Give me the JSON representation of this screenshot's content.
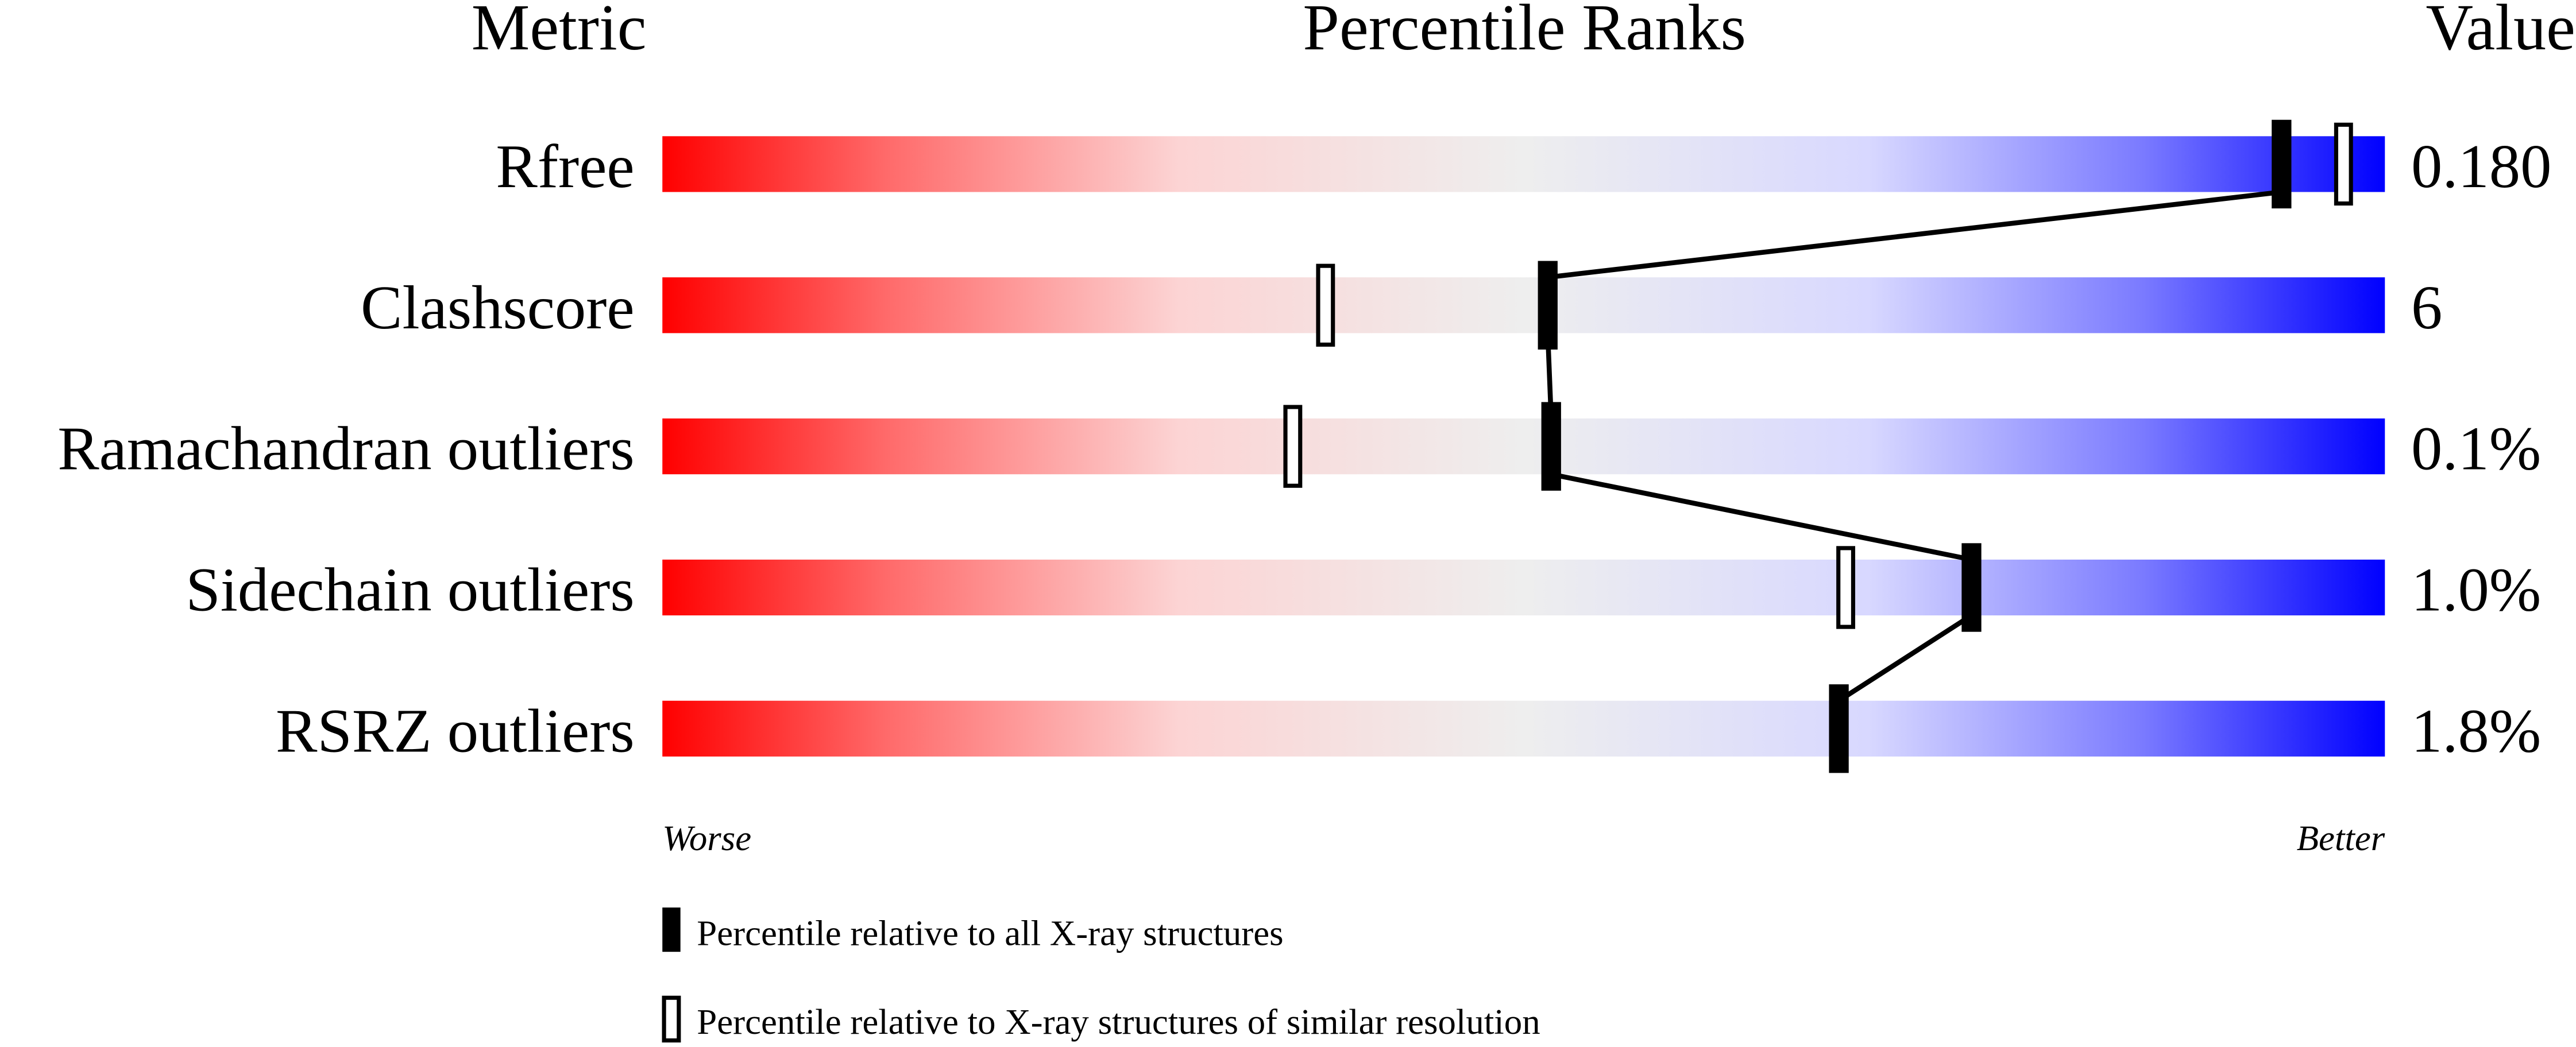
{
  "chart_data": {
    "type": "bar",
    "headers": {
      "metric": "Metric",
      "ranks": "Percentile Ranks",
      "value": "Value"
    },
    "xlim": [
      0,
      100
    ],
    "axis_labels": {
      "left": "Worse",
      "right": "Better"
    },
    "rows": [
      {
        "metric": "Rfree",
        "value": "0.180",
        "percentile_all": 94,
        "percentile_similar": 97.6
      },
      {
        "metric": "Clashscore",
        "value": "6",
        "percentile_all": 51.4,
        "percentile_similar": 38.5
      },
      {
        "metric": "Ramachandran outliers",
        "value": "0.1%",
        "percentile_all": 51.6,
        "percentile_similar": 36.6
      },
      {
        "metric": "Sidechain outliers",
        "value": "1.0%",
        "percentile_all": 76,
        "percentile_similar": 68.7
      },
      {
        "metric": "RSRZ outliers",
        "value": "1.8%",
        "percentile_all": 68.3,
        "percentile_similar": null
      }
    ],
    "legend": [
      {
        "marker": "filled",
        "label": "Percentile relative to all X-ray structures"
      },
      {
        "marker": "open",
        "label": "Percentile relative to X-ray structures of similar resolution"
      }
    ],
    "gradient_colors": [
      "#ff0000",
      "#ff6a6a",
      "#fcd4d4",
      "#eeeeee",
      "#d8d8ff",
      "#7a7aff",
      "#0000ff"
    ]
  }
}
